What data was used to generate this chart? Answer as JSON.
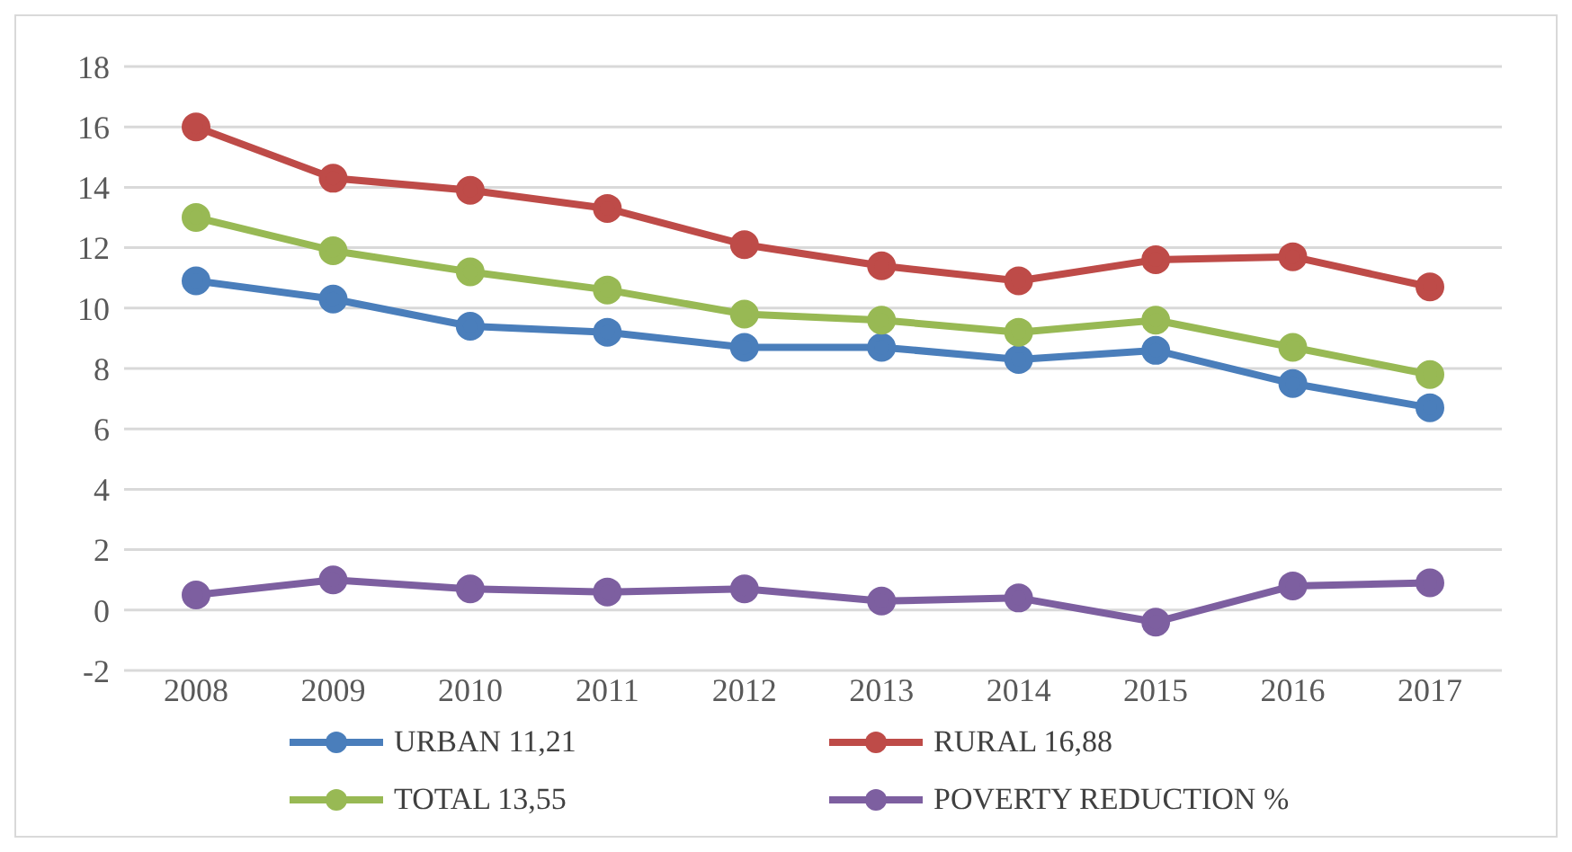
{
  "chart_data": {
    "type": "line",
    "categories": [
      "2008",
      "2009",
      "2010",
      "2011",
      "2012",
      "2013",
      "2014",
      "2015",
      "2016",
      "2017"
    ],
    "series": [
      {
        "name": "URBAN 11,21",
        "color": "#4a7ebb",
        "values": [
          10.9,
          10.3,
          9.4,
          9.2,
          8.7,
          8.7,
          8.3,
          8.6,
          7.5,
          6.7
        ]
      },
      {
        "name": "RURAL 16,88",
        "color": "#be4b48",
        "values": [
          16.0,
          14.3,
          13.9,
          13.3,
          12.1,
          11.4,
          10.9,
          11.6,
          11.7,
          10.7
        ]
      },
      {
        "name": "TOTAL 13,55",
        "color": "#98b954",
        "values": [
          13.0,
          11.9,
          11.2,
          10.6,
          9.8,
          9.6,
          9.2,
          9.6,
          8.7,
          7.8
        ]
      },
      {
        "name": "POVERTY REDUCTION %",
        "color": "#7d5fa0",
        "values": [
          0.5,
          1.0,
          0.7,
          0.6,
          0.7,
          0.3,
          0.4,
          -0.4,
          0.8,
          0.9
        ]
      }
    ],
    "ylim": [
      -2,
      18
    ],
    "yticks": [
      -2,
      0,
      2,
      4,
      6,
      8,
      10,
      12,
      14,
      16,
      18
    ],
    "grid": "y",
    "legend": "bottom",
    "marker": "circle",
    "line_style": "solid"
  }
}
